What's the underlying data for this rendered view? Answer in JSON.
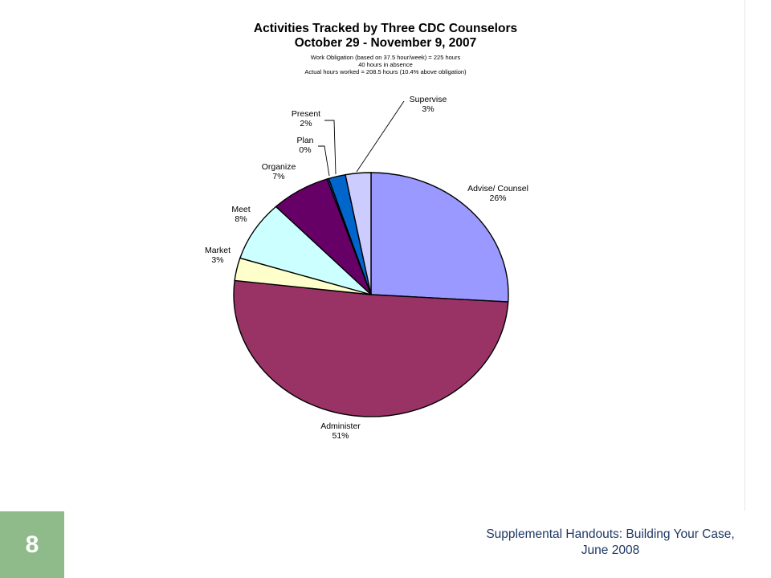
{
  "chart_data": {
    "type": "pie",
    "title": "Activities Tracked by Three CDC Counselors",
    "subtitle": "October 29 - November 9, 2007",
    "notes": [
      "Work Obligation (based on 37.5 hour/week) = 225 hours",
      "40 hours in absence",
      "Actual hours worked = 208.5 hours (10.4% above obligation)"
    ],
    "slices": [
      {
        "name": "Advise/ Counsel",
        "label": "26%",
        "value": 26,
        "color": "#9999ff"
      },
      {
        "name": "Administer",
        "label": "51%",
        "value": 51,
        "color": "#993366"
      },
      {
        "name": "Market",
        "label": "3%",
        "value": 3,
        "color": "#ffffcc"
      },
      {
        "name": "Meet",
        "label": "8%",
        "value": 8,
        "color": "#ccffff"
      },
      {
        "name": "Organize",
        "label": "7%",
        "value": 7,
        "color": "#660066"
      },
      {
        "name": "Plan",
        "label": "0%",
        "value": 0.2,
        "color": "#0066cc"
      },
      {
        "name": "Present",
        "label": "2%",
        "value": 2,
        "color": "#0066cc"
      },
      {
        "name": "Supervise",
        "label": "3%",
        "value": 3,
        "color": "#ccccff"
      }
    ]
  },
  "slide": {
    "number": "8",
    "footer": "Supplemental Handouts: Building Your Case, June 2008"
  }
}
